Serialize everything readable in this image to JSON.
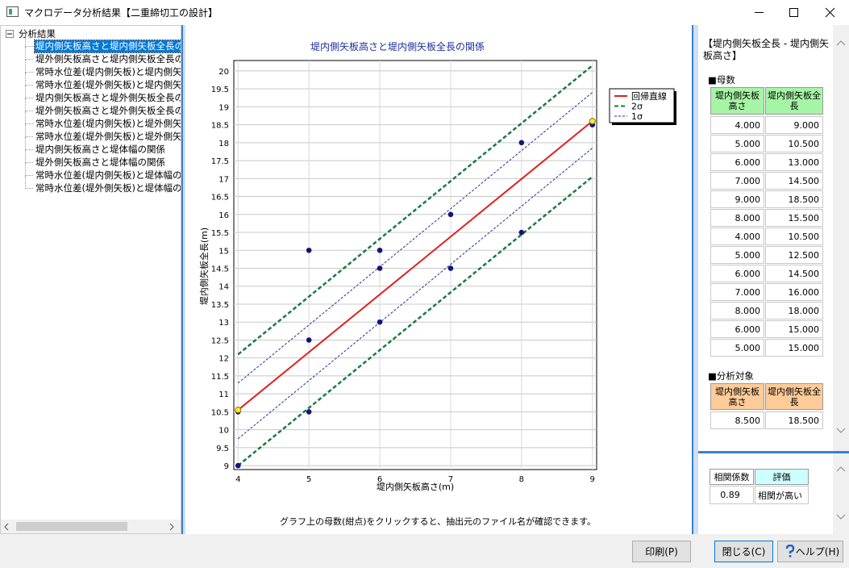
{
  "window": {
    "title": "マクロデータ分析結果【二重締切工の設計】"
  },
  "tree": {
    "root": "分析結果",
    "selected": 0,
    "items": [
      "堤内側矢板高さと堤内側矢板全長の",
      "堤外側矢板高さと堤内側矢板全長の",
      "常時水位差(堤内側矢板)と堤内側矢",
      "常時水位差(堤外側矢板)と堤内側矢",
      "堤内側矢板高さと堤外側矢板全長の",
      "堤外側矢板高さと堤外側矢板全長の",
      "常時水位差(堤内側矢板)と堤外側矢",
      "常時水位差(堤外側矢板)と堤外側矢",
      "堤内側矢板高さと堤体幅の関係",
      "堤外側矢板高さと堤体幅の関係",
      "常時水位差(堤内側矢板)と堤体幅の",
      "常時水位差(堤外側矢板)と堤体幅の"
    ]
  },
  "chart_data": {
    "type": "scatter",
    "title": "堤内側矢板高さと堤内側矢板全長の関係",
    "x_label": "堤内側矢板高さ(m)",
    "y_label": "堤内側矢板全長(m)",
    "note": "グラフ上の母数(紺点)をクリックすると、抽出元のファイル名が確認できます。",
    "xlim": [
      3.94,
      9.06
    ],
    "ylim": [
      8.89,
      20.29
    ],
    "xticks": [
      4,
      5,
      6,
      7,
      8,
      9
    ],
    "yticks": [
      9,
      9.5,
      10,
      10.5,
      11,
      11.5,
      12,
      12.5,
      13,
      13.5,
      14,
      14.5,
      15,
      15.5,
      16,
      16.5,
      17,
      17.5,
      18,
      18.5,
      19,
      19.5,
      20
    ],
    "grid": true,
    "points": {
      "color": "#14147a",
      "x": [
        4,
        5,
        6,
        7,
        9,
        8,
        4,
        5,
        6,
        7,
        8,
        6,
        5
      ],
      "y": [
        9,
        10.5,
        13,
        14.5,
        18.5,
        15.5,
        10.5,
        12.5,
        14.5,
        16,
        18,
        15,
        15
      ]
    },
    "series": [
      {
        "name": "回帰直線",
        "color": "#e02020",
        "dash": "none",
        "x": [
          4,
          9
        ],
        "values": [
          10.55,
          18.6
        ],
        "endpoint_color": "#ffee33"
      },
      {
        "name": "2σ",
        "color": "#1a7a40",
        "dash": "5,3",
        "x": [
          4,
          9
        ],
        "upper": [
          12.1,
          20.15
        ],
        "lower": [
          9.0,
          17.05
        ]
      },
      {
        "name": "1σ",
        "color": "#2a2aa0",
        "dash": "3,2",
        "x": [
          4,
          9
        ],
        "upper": [
          11.3,
          19.4
        ],
        "lower": [
          9.75,
          17.85
        ]
      }
    ]
  },
  "panel": {
    "title": "【堤内側矢板全長 - 堤内側矢板高さ】",
    "population": {
      "heading": "■母数",
      "color": "#a6f5a6",
      "headers": [
        "堤内側矢板高さ",
        "堤内側矢板全長"
      ],
      "rows": [
        [
          "4.000",
          "9.000"
        ],
        [
          "5.000",
          "10.500"
        ],
        [
          "6.000",
          "13.000"
        ],
        [
          "7.000",
          "14.500"
        ],
        [
          "9.000",
          "18.500"
        ],
        [
          "8.000",
          "15.500"
        ],
        [
          "4.000",
          "10.500"
        ],
        [
          "5.000",
          "12.500"
        ],
        [
          "6.000",
          "14.500"
        ],
        [
          "7.000",
          "16.000"
        ],
        [
          "8.000",
          "18.000"
        ],
        [
          "6.000",
          "15.000"
        ],
        [
          "5.000",
          "15.000"
        ]
      ]
    },
    "target": {
      "heading": "■分析対象",
      "color": "#ffcc99",
      "headers": [
        "堤内側矢板高さ",
        "堤内側矢板全長"
      ],
      "rows": [
        [
          "8.500",
          "18.500"
        ]
      ]
    },
    "correlation": {
      "header_colors": [
        "#ffffff",
        "#ccffff"
      ],
      "headers": [
        "相関係数",
        "評価"
      ],
      "rows": [
        [
          "0.89",
          "相関が高い"
        ]
      ]
    }
  },
  "buttons": [
    "印刷(P)",
    "閉じる(C)",
    "ヘルプ(H)"
  ]
}
